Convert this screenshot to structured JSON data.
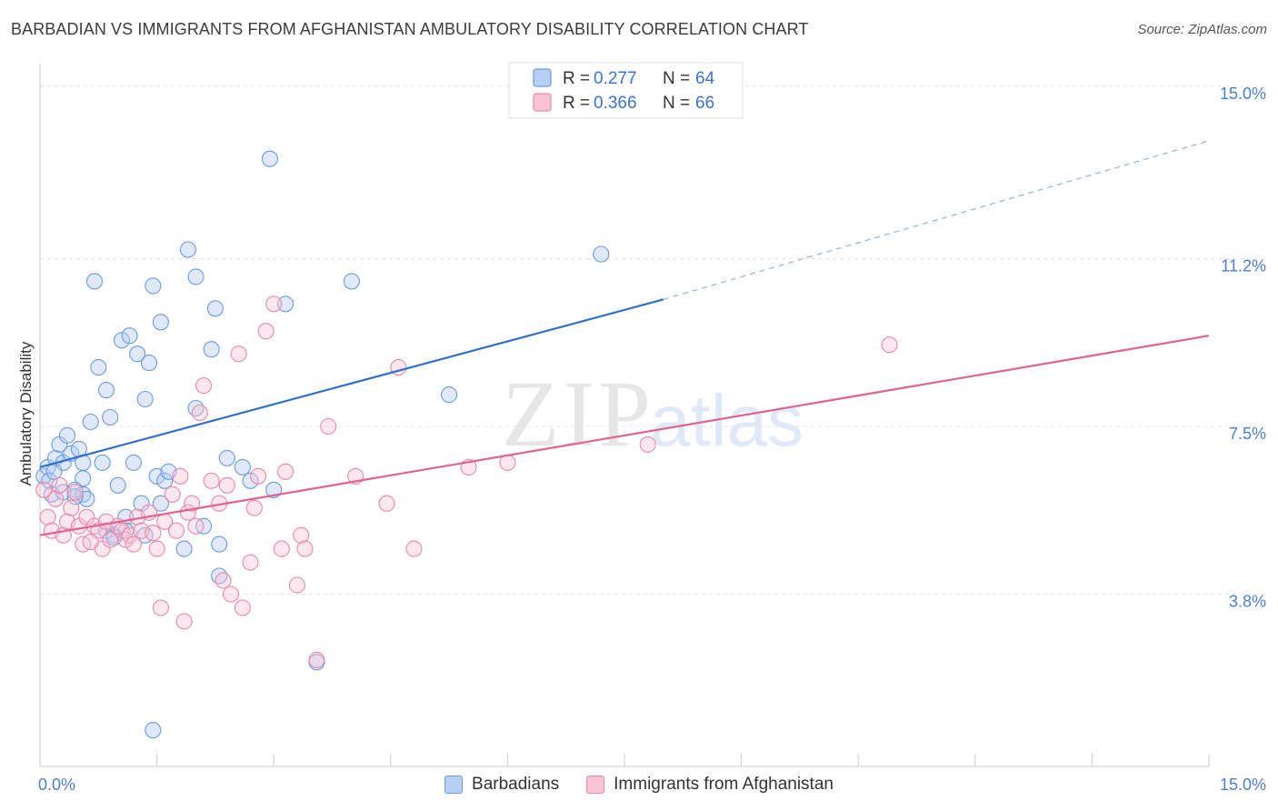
{
  "header": {
    "title": "BARBADIAN VS IMMIGRANTS FROM AFGHANISTAN AMBULATORY DISABILITY CORRELATION CHART",
    "source": "Source: ZipAtlas.com"
  },
  "watermark": {
    "zip": "ZIP",
    "atlas": "atlas"
  },
  "chart_data": {
    "type": "scatter",
    "title": "BARBADIAN VS IMMIGRANTS FROM AFGHANISTAN AMBULATORY DISABILITY CORRELATION CHART",
    "xlabel": "",
    "ylabel": "Ambulatory Disability",
    "xlim": [
      0,
      15
    ],
    "ylim": [
      0,
      15.5
    ],
    "x_tick_labels": {
      "min": "0.0%",
      "max": "15.0%"
    },
    "y_ticks": [
      {
        "value": 3.8,
        "label": "3.8%"
      },
      {
        "value": 7.5,
        "label": "7.5%"
      },
      {
        "value": 11.2,
        "label": "11.2%"
      },
      {
        "value": 15.0,
        "label": "15.0%"
      }
    ],
    "grid": true,
    "legend": [
      {
        "name": "Barbadians",
        "r_label": "R =",
        "r": "0.277",
        "n_label": "N =",
        "n": "64",
        "color": "#6a9be0",
        "fill": "#b7cff3"
      },
      {
        "name": "Immigrants from Afghanistan",
        "r_label": "R =",
        "r": "0.366",
        "n_label": "N =",
        "n": "66",
        "color": "#e889a9",
        "fill": "#f8c4d5"
      }
    ],
    "series": [
      {
        "name": "Barbadians",
        "color": "#6a9be0",
        "trend": {
          "x0": 0,
          "y0": 6.6,
          "x1": 8.0,
          "y1": 10.3,
          "x_ext": 15.0,
          "y_ext": 13.8,
          "color": "#2f6fce"
        },
        "points": [
          [
            0.05,
            6.4
          ],
          [
            0.1,
            6.6
          ],
          [
            0.12,
            6.3
          ],
          [
            0.15,
            6.0
          ],
          [
            0.2,
            6.8
          ],
          [
            0.25,
            7.1
          ],
          [
            0.3,
            6.7
          ],
          [
            0.35,
            7.3
          ],
          [
            0.4,
            6.9
          ],
          [
            0.45,
            6.1
          ],
          [
            0.5,
            7.0
          ],
          [
            0.55,
            6.0
          ],
          [
            0.6,
            5.9
          ],
          [
            0.65,
            7.6
          ],
          [
            0.7,
            10.7
          ],
          [
            0.75,
            8.8
          ],
          [
            0.8,
            6.7
          ],
          [
            0.85,
            8.3
          ],
          [
            0.9,
            7.7
          ],
          [
            0.95,
            5.1
          ],
          [
            1.0,
            6.2
          ],
          [
            1.05,
            9.4
          ],
          [
            1.1,
            5.5
          ],
          [
            1.15,
            9.5
          ],
          [
            1.2,
            6.7
          ],
          [
            1.25,
            9.1
          ],
          [
            1.3,
            5.8
          ],
          [
            1.35,
            8.1
          ],
          [
            1.4,
            8.9
          ],
          [
            1.45,
            10.6
          ],
          [
            1.5,
            6.4
          ],
          [
            1.55,
            9.8
          ],
          [
            1.6,
            6.3
          ],
          [
            1.65,
            6.5
          ],
          [
            1.85,
            4.8
          ],
          [
            1.9,
            11.4
          ],
          [
            2.0,
            10.8
          ],
          [
            2.1,
            5.3
          ],
          [
            2.2,
            9.2
          ],
          [
            2.25,
            10.1
          ],
          [
            2.3,
            4.2
          ],
          [
            2.4,
            6.8
          ],
          [
            2.6,
            6.6
          ],
          [
            2.7,
            6.3
          ],
          [
            2.95,
            13.4
          ],
          [
            3.0,
            6.1
          ],
          [
            3.15,
            10.2
          ],
          [
            3.55,
            2.3
          ],
          [
            4.0,
            10.7
          ],
          [
            5.25,
            8.2
          ],
          [
            7.2,
            11.3
          ],
          [
            1.45,
            0.8
          ],
          [
            0.3,
            6.05
          ],
          [
            0.55,
            6.35
          ],
          [
            0.45,
            5.95
          ],
          [
            0.85,
            5.2
          ],
          [
            1.35,
            5.1
          ],
          [
            1.55,
            5.8
          ],
          [
            0.95,
            5.05
          ],
          [
            2.3,
            4.9
          ],
          [
            2.0,
            7.9
          ],
          [
            0.55,
            6.7
          ],
          [
            1.1,
            5.2
          ],
          [
            0.18,
            6.5
          ]
        ]
      },
      {
        "name": "Immigrants from Afghanistan",
        "color": "#e889a9",
        "trend": {
          "x0": 0,
          "y0": 5.1,
          "x1": 15.0,
          "y1": 9.5,
          "color": "#e0628e"
        },
        "points": [
          [
            0.05,
            6.1
          ],
          [
            0.1,
            5.5
          ],
          [
            0.15,
            5.2
          ],
          [
            0.2,
            5.9
          ],
          [
            0.3,
            5.1
          ],
          [
            0.35,
            5.4
          ],
          [
            0.4,
            5.7
          ],
          [
            0.5,
            5.3
          ],
          [
            0.55,
            4.9
          ],
          [
            0.6,
            5.5
          ],
          [
            0.7,
            5.3
          ],
          [
            0.75,
            5.2
          ],
          [
            0.8,
            4.8
          ],
          [
            0.85,
            5.4
          ],
          [
            0.9,
            5.0
          ],
          [
            1.0,
            5.3
          ],
          [
            1.05,
            5.2
          ],
          [
            1.1,
            5.0
          ],
          [
            1.15,
            5.1
          ],
          [
            1.2,
            4.9
          ],
          [
            1.25,
            5.5
          ],
          [
            1.3,
            5.2
          ],
          [
            1.4,
            5.6
          ],
          [
            1.5,
            4.8
          ],
          [
            1.55,
            3.5
          ],
          [
            1.6,
            5.4
          ],
          [
            1.7,
            6.0
          ],
          [
            1.75,
            5.2
          ],
          [
            1.8,
            6.4
          ],
          [
            1.85,
            3.2
          ],
          [
            1.9,
            5.6
          ],
          [
            2.0,
            5.3
          ],
          [
            2.05,
            7.8
          ],
          [
            2.1,
            8.4
          ],
          [
            2.2,
            6.3
          ],
          [
            2.3,
            5.8
          ],
          [
            2.4,
            6.2
          ],
          [
            2.45,
            3.8
          ],
          [
            2.55,
            9.1
          ],
          [
            2.6,
            3.5
          ],
          [
            2.7,
            4.5
          ],
          [
            2.8,
            6.4
          ],
          [
            2.9,
            9.6
          ],
          [
            3.0,
            10.2
          ],
          [
            3.1,
            4.8
          ],
          [
            3.3,
            4.0
          ],
          [
            3.35,
            5.1
          ],
          [
            3.4,
            4.8
          ],
          [
            3.55,
            2.35
          ],
          [
            3.7,
            7.5
          ],
          [
            4.05,
            6.4
          ],
          [
            4.6,
            8.8
          ],
          [
            4.8,
            4.8
          ],
          [
            5.5,
            6.6
          ],
          [
            6.0,
            6.7
          ],
          [
            7.8,
            7.1
          ],
          [
            10.9,
            9.3
          ],
          [
            1.95,
            5.8
          ],
          [
            2.35,
            4.1
          ],
          [
            0.65,
            4.95
          ],
          [
            1.45,
            5.15
          ],
          [
            2.75,
            5.7
          ],
          [
            0.25,
            6.2
          ],
          [
            0.45,
            6.05
          ],
          [
            3.15,
            6.5
          ],
          [
            4.45,
            5.8
          ]
        ]
      }
    ]
  }
}
